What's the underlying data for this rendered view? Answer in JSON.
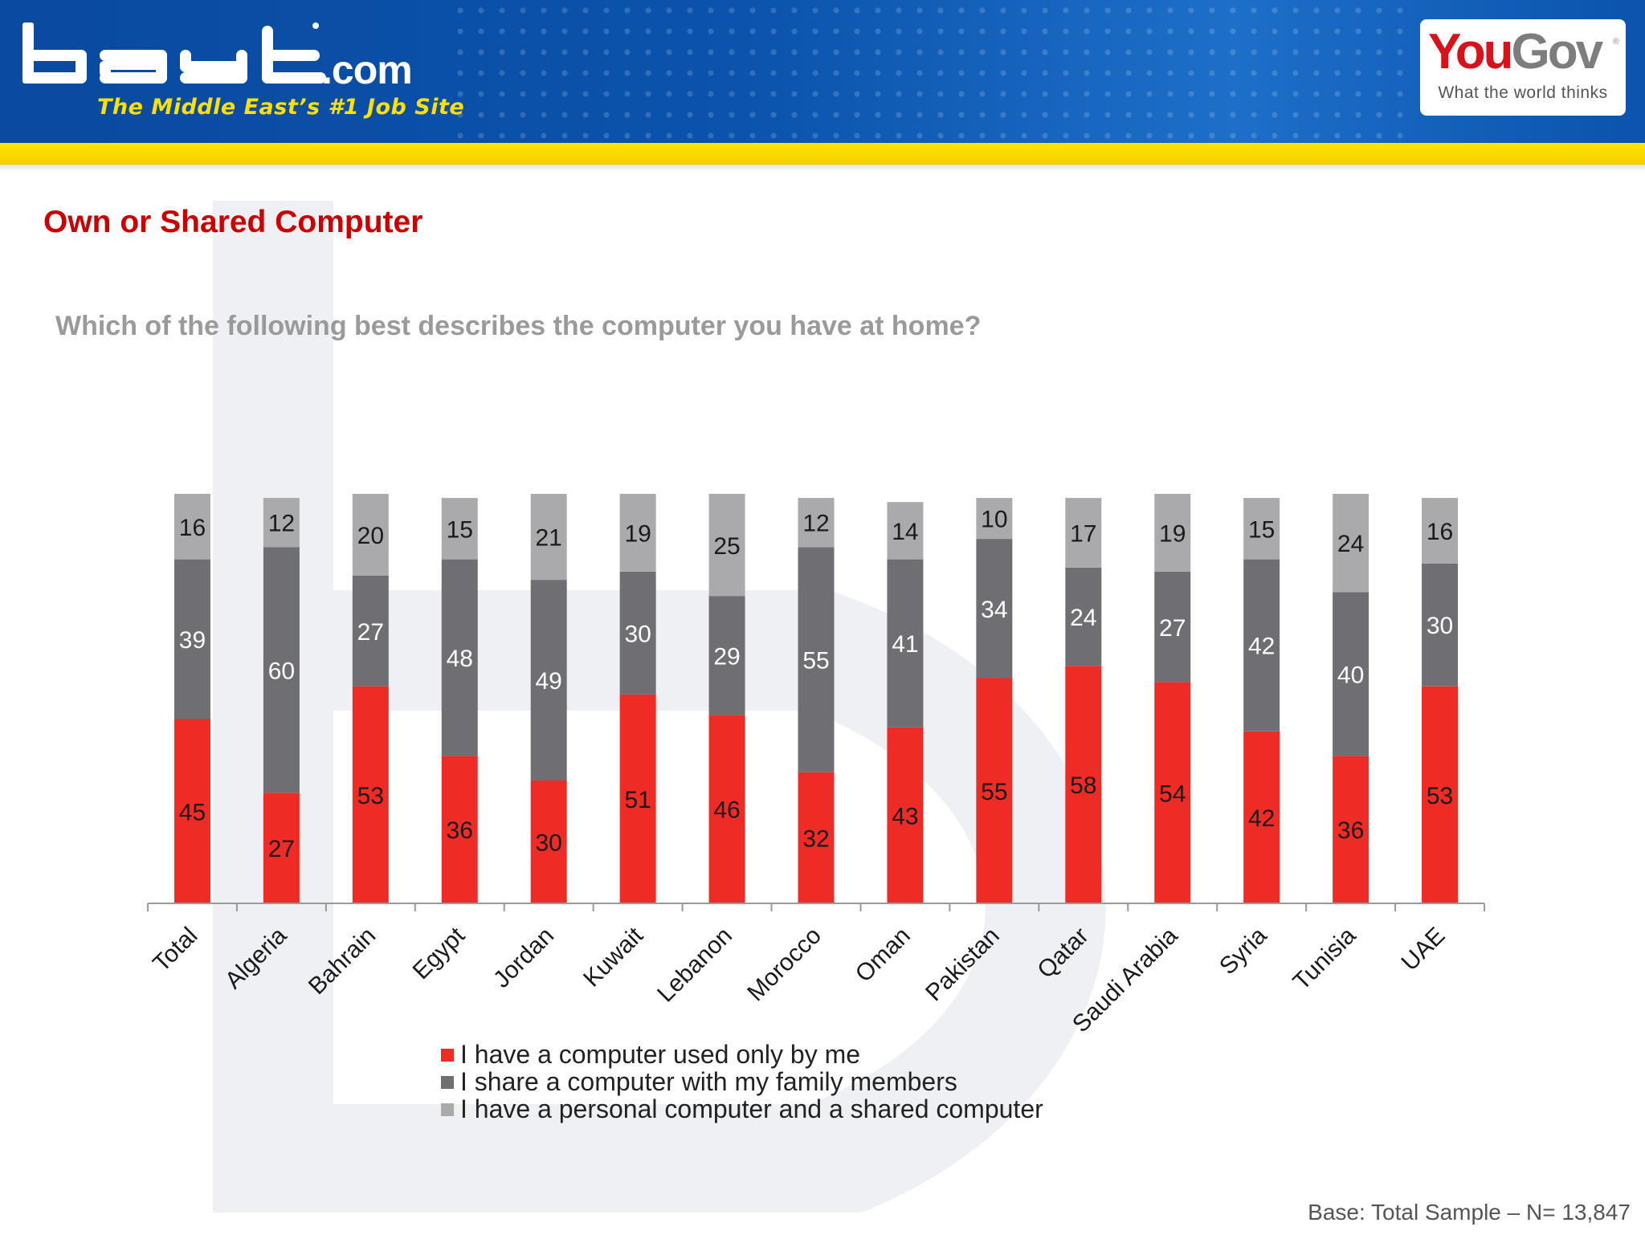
{
  "header": {
    "bayt_com": ".com",
    "bayt_tagline": "The Middle East’s #1 Job Site",
    "yougov_you": "You",
    "yougov_gov": "Gov",
    "yougov_tagline": "What the world thinks"
  },
  "slide": {
    "title": "Own or Shared Computer",
    "question": "Which of the following best describes the computer you have at home?",
    "base_note": "Base: Total Sample – N= 13,847"
  },
  "colors": {
    "own": "#ee2b24",
    "shared_family": "#6f6f73",
    "both": "#aaaaac",
    "title_red": "#cc0000"
  },
  "chart_data": {
    "type": "bar",
    "stacked": true,
    "categories": [
      "Total",
      "Algeria",
      "Bahrain",
      "Egypt",
      "Jordan",
      "Kuwait",
      "Lebanon",
      "Morocco",
      "Oman",
      "Pakistan",
      "Qatar",
      "Saudi Arabia",
      "Syria",
      "Tunisia",
      "UAE"
    ],
    "series": [
      {
        "name": "I have a computer used only by me",
        "values": [
          45,
          27,
          53,
          36,
          30,
          51,
          46,
          32,
          43,
          55,
          58,
          54,
          42,
          36,
          53
        ]
      },
      {
        "name": "I share a computer with my family members",
        "values": [
          39,
          60,
          27,
          48,
          49,
          30,
          29,
          55,
          41,
          34,
          24,
          27,
          42,
          40,
          30
        ]
      },
      {
        "name": "I have a personal computer and a shared computer",
        "values": [
          16,
          12,
          20,
          15,
          21,
          19,
          25,
          12,
          14,
          10,
          17,
          19,
          15,
          24,
          16
        ]
      }
    ],
    "title": "",
    "xlabel": "",
    "ylabel": "",
    "ylim": [
      0,
      100
    ],
    "grid": false,
    "legend_position": "bottom"
  }
}
